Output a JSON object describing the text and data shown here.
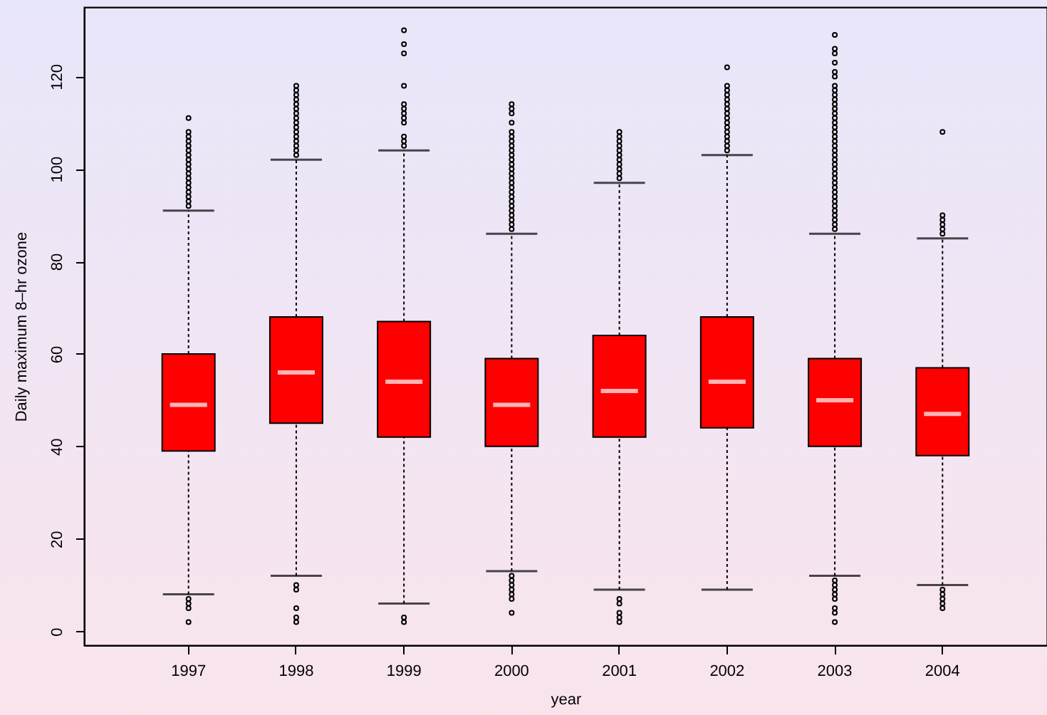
{
  "chart_data": {
    "type": "box",
    "xlabel": "year",
    "ylabel": "Daily maximum 8–hr ozone",
    "color": "#ff0000",
    "marker": "circle",
    "categories": [
      "1997",
      "1998",
      "1999",
      "2000",
      "2001",
      "2002",
      "2003",
      "2004"
    ],
    "ylim": [
      -3,
      135
    ],
    "yticks": [
      0,
      20,
      40,
      60,
      80,
      100,
      120
    ],
    "boxes": [
      {
        "low": 8,
        "q1": 39,
        "median": 49,
        "q3": 60,
        "high": 91,
        "outliers": [
          92,
          93,
          94,
          95,
          96,
          97,
          98,
          99,
          100,
          101,
          102,
          103,
          104,
          105,
          106,
          107,
          108,
          111,
          7,
          6,
          5,
          2
        ]
      },
      {
        "low": 12,
        "q1": 45,
        "median": 56,
        "q3": 68,
        "high": 102,
        "outliers": [
          103,
          104,
          105,
          106,
          107,
          108,
          109,
          110,
          111,
          112,
          113,
          114,
          115,
          116,
          117,
          118,
          10,
          9,
          5,
          3,
          2
        ]
      },
      {
        "low": 6,
        "q1": 42,
        "median": 54,
        "q3": 67,
        "high": 104,
        "outliers": [
          105,
          106,
          107,
          110,
          111,
          112,
          113,
          114,
          118,
          125,
          127,
          130,
          3,
          2
        ]
      },
      {
        "low": 13,
        "q1": 40,
        "median": 49,
        "q3": 59,
        "high": 86,
        "outliers": [
          87,
          88,
          89,
          90,
          91,
          92,
          93,
          94,
          95,
          96,
          97,
          98,
          99,
          100,
          101,
          102,
          103,
          104,
          105,
          106,
          107,
          108,
          110,
          112,
          113,
          114,
          12,
          11,
          10,
          9,
          8,
          7,
          4
        ]
      },
      {
        "low": 9,
        "q1": 42,
        "median": 52,
        "q3": 64,
        "high": 97,
        "outliers": [
          98,
          99,
          100,
          101,
          102,
          103,
          104,
          105,
          106,
          107,
          108,
          7,
          6,
          4,
          3,
          2
        ]
      },
      {
        "low": 9,
        "q1": 44,
        "median": 54,
        "q3": 68,
        "high": 103,
        "outliers": [
          104,
          105,
          106,
          107,
          108,
          109,
          110,
          111,
          112,
          113,
          114,
          115,
          116,
          117,
          118,
          122
        ]
      },
      {
        "low": 12,
        "q1": 40,
        "median": 50,
        "q3": 59,
        "high": 86,
        "outliers": [
          87,
          88,
          89,
          90,
          91,
          92,
          93,
          94,
          95,
          96,
          97,
          98,
          99,
          100,
          101,
          102,
          103,
          104,
          105,
          106,
          107,
          108,
          109,
          110,
          111,
          112,
          113,
          114,
          115,
          116,
          117,
          118,
          120,
          121,
          123,
          125,
          126,
          129,
          11,
          10,
          9,
          8,
          7,
          5,
          4,
          2
        ]
      },
      {
        "low": 10,
        "q1": 38,
        "median": 47,
        "q3": 57,
        "high": 85,
        "outliers": [
          86,
          87,
          88,
          89,
          90,
          108,
          9,
          8,
          7,
          6,
          5
        ]
      }
    ]
  }
}
